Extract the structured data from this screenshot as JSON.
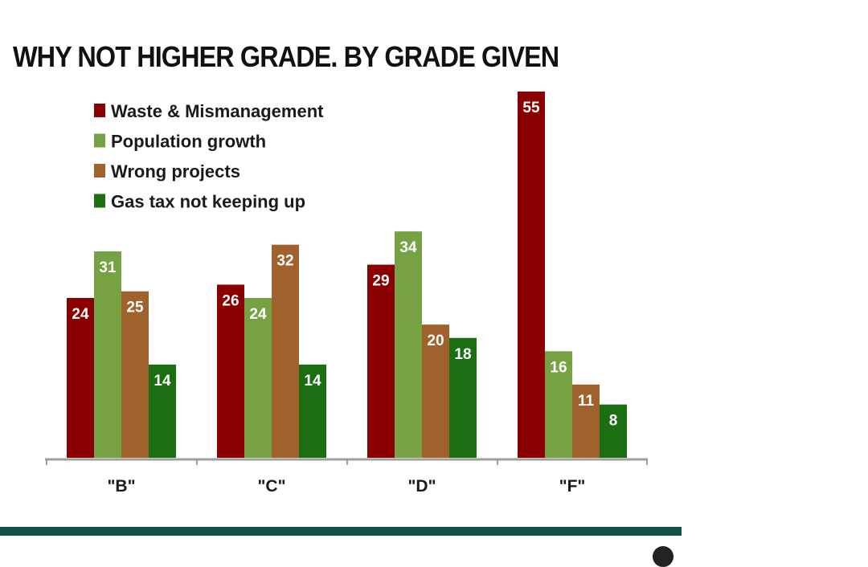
{
  "chart_data": {
    "type": "bar",
    "title": "WHY NOT HIGHER GRADE. BY GRADE GIVEN",
    "categories": [
      "\"B\"",
      "\"C\"",
      "\"D\"",
      "\"F\""
    ],
    "series": [
      {
        "name": "Waste & Mismanagement",
        "color": "#8a0000",
        "values": [
          24,
          26,
          29,
          55
        ]
      },
      {
        "name": "Population growth",
        "color": "#77a244",
        "values": [
          31,
          24,
          34,
          16
        ]
      },
      {
        "name": "Wrong projects",
        "color": "#a0622c",
        "values": [
          25,
          32,
          20,
          11
        ]
      },
      {
        "name": "Gas tax not keeping up",
        "color": "#1b6e12",
        "values": [
          14,
          14,
          18,
          8
        ]
      }
    ],
    "ylim": [
      0,
      55
    ],
    "legend_position": "top-left",
    "grid": false
  },
  "colors": {
    "axis": "#9e9e9e",
    "rule": "#0f5149"
  }
}
